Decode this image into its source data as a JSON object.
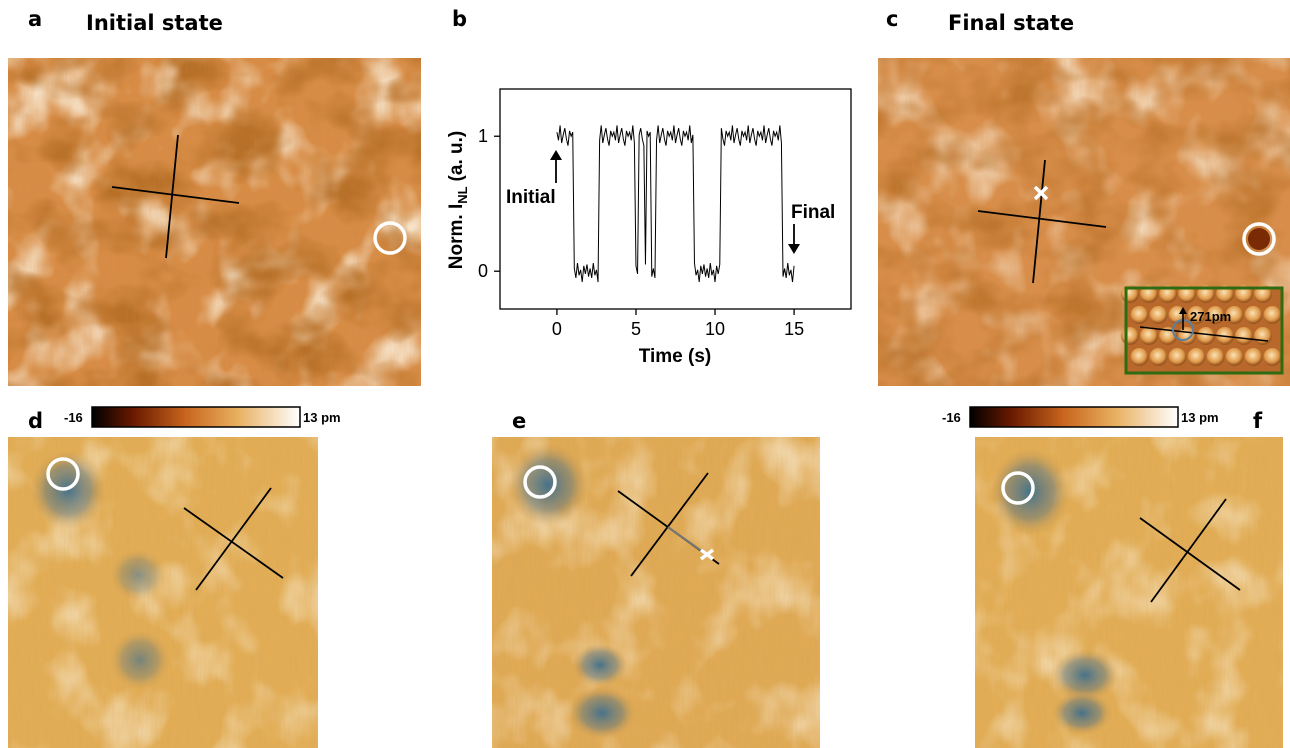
{
  "panels": {
    "a": {
      "label": "a",
      "title": "Initial state"
    },
    "b": {
      "label": "b"
    },
    "c": {
      "label": "c",
      "title": "Final state",
      "inset_label": "271pm"
    },
    "d": {
      "label": "d"
    },
    "e": {
      "label": "e"
    },
    "f": {
      "label": "f"
    }
  },
  "colorbars": [
    {
      "min": "-16",
      "max": "13 pm"
    },
    {
      "min": "-16",
      "max": "13 pm"
    }
  ],
  "chart_data": {
    "type": "line",
    "xlabel": "Time (s)",
    "ylabel": {
      "main": "Norm. I",
      "sub": "NL",
      "tail": "(a. u.)"
    },
    "annotations": [
      "Initial",
      "Final"
    ],
    "color": "#000000",
    "xlim": [
      -3.6,
      18.6
    ],
    "ylim": [
      -0.28,
      1.35
    ],
    "xticks": [
      0,
      5,
      10,
      15
    ],
    "yticks": [
      0,
      1
    ],
    "x": [
      0,
      0.1,
      0.2,
      0.3,
      0.4,
      0.5,
      0.6,
      0.7,
      0.8,
      0.9,
      1.0,
      1.1,
      1.2,
      1.3,
      1.4,
      1.5,
      1.6,
      1.7,
      1.8,
      1.9,
      2.0,
      2.1,
      2.2,
      2.3,
      2.4,
      2.5,
      2.6,
      2.7,
      2.8,
      2.9,
      3.0,
      3.1,
      3.2,
      3.3,
      3.4,
      3.5,
      3.6,
      3.7,
      3.8,
      3.9,
      4.0,
      4.1,
      4.2,
      4.3,
      4.4,
      4.5,
      4.6,
      4.7,
      4.8,
      4.9,
      5.0,
      5.1,
      5.2,
      5.3,
      5.4,
      5.5,
      5.6,
      5.7,
      5.8,
      5.9,
      6.0,
      6.1,
      6.2,
      6.3,
      6.4,
      6.5,
      6.6,
      6.7,
      6.8,
      6.9,
      7.0,
      7.1,
      7.2,
      7.3,
      7.4,
      7.5,
      7.6,
      7.7,
      7.8,
      7.9,
      8.0,
      8.1,
      8.2,
      8.3,
      8.4,
      8.5,
      8.6,
      8.7,
      8.8,
      8.9,
      9.0,
      9.1,
      9.2,
      9.3,
      9.4,
      9.5,
      9.6,
      9.7,
      9.8,
      9.9,
      10.0,
      10.1,
      10.2,
      10.3,
      10.4,
      10.5,
      10.6,
      10.7,
      10.8,
      10.9,
      11.0,
      11.1,
      11.2,
      11.3,
      11.4,
      11.5,
      11.6,
      11.7,
      11.8,
      11.9,
      12.0,
      12.1,
      12.2,
      12.3,
      12.4,
      12.5,
      12.6,
      12.7,
      12.8,
      12.9,
      13.0,
      13.1,
      13.2,
      13.3,
      13.4,
      13.5,
      13.6,
      13.7,
      13.8,
      13.9,
      14.0,
      14.1,
      14.2,
      14.3,
      14.4,
      14.5,
      14.6,
      14.7,
      14.8,
      14.9,
      15.0
    ],
    "values": [
      1.03,
      0.97,
      1.08,
      0.95,
      1.01,
      1.06,
      0.98,
      0.93,
      1.04,
      1.0,
      1.03,
      0.02,
      -0.05,
      0.06,
      -0.03,
      0.01,
      -0.08,
      0.04,
      -0.02,
      0.05,
      -0.04,
      0.02,
      -0.05,
      0.06,
      -0.03,
      0.01,
      -0.08,
      0.97,
      1.08,
      0.95,
      1.01,
      1.06,
      0.98,
      0.93,
      1.04,
      1.0,
      1.03,
      0.97,
      1.08,
      0.95,
      1.01,
      1.06,
      0.98,
      0.93,
      1.04,
      1.0,
      1.03,
      0.97,
      1.08,
      0.95,
      0.04,
      -0.02,
      1.01,
      1.06,
      0.98,
      0.93,
      0.05,
      1.04,
      1.0,
      1.03,
      -0.04,
      0.02,
      -0.05,
      0.97,
      1.08,
      0.95,
      1.01,
      1.06,
      0.98,
      0.93,
      1.04,
      1.0,
      1.03,
      0.97,
      1.08,
      0.95,
      1.01,
      1.06,
      0.98,
      0.93,
      1.04,
      1.0,
      1.03,
      0.97,
      1.08,
      0.95,
      1.01,
      0.06,
      -0.03,
      0.01,
      -0.08,
      0.04,
      -0.02,
      0.05,
      -0.04,
      0.02,
      -0.05,
      0.06,
      -0.03,
      0.01,
      -0.08,
      0.04,
      -0.02,
      0.05,
      1.06,
      0.98,
      0.93,
      1.04,
      1.0,
      1.03,
      0.97,
      1.08,
      0.95,
      1.01,
      1.06,
      0.98,
      0.93,
      1.04,
      1.0,
      1.03,
      0.97,
      1.08,
      0.95,
      1.01,
      1.06,
      0.98,
      0.93,
      1.04,
      1.0,
      1.03,
      0.97,
      1.08,
      0.95,
      1.01,
      1.06,
      0.98,
      0.93,
      1.04,
      1.0,
      1.03,
      0.97,
      1.08,
      0.95,
      -0.04,
      0.02,
      -0.05,
      0.06,
      -0.03,
      0.01,
      -0.08,
      0.04
    ]
  }
}
